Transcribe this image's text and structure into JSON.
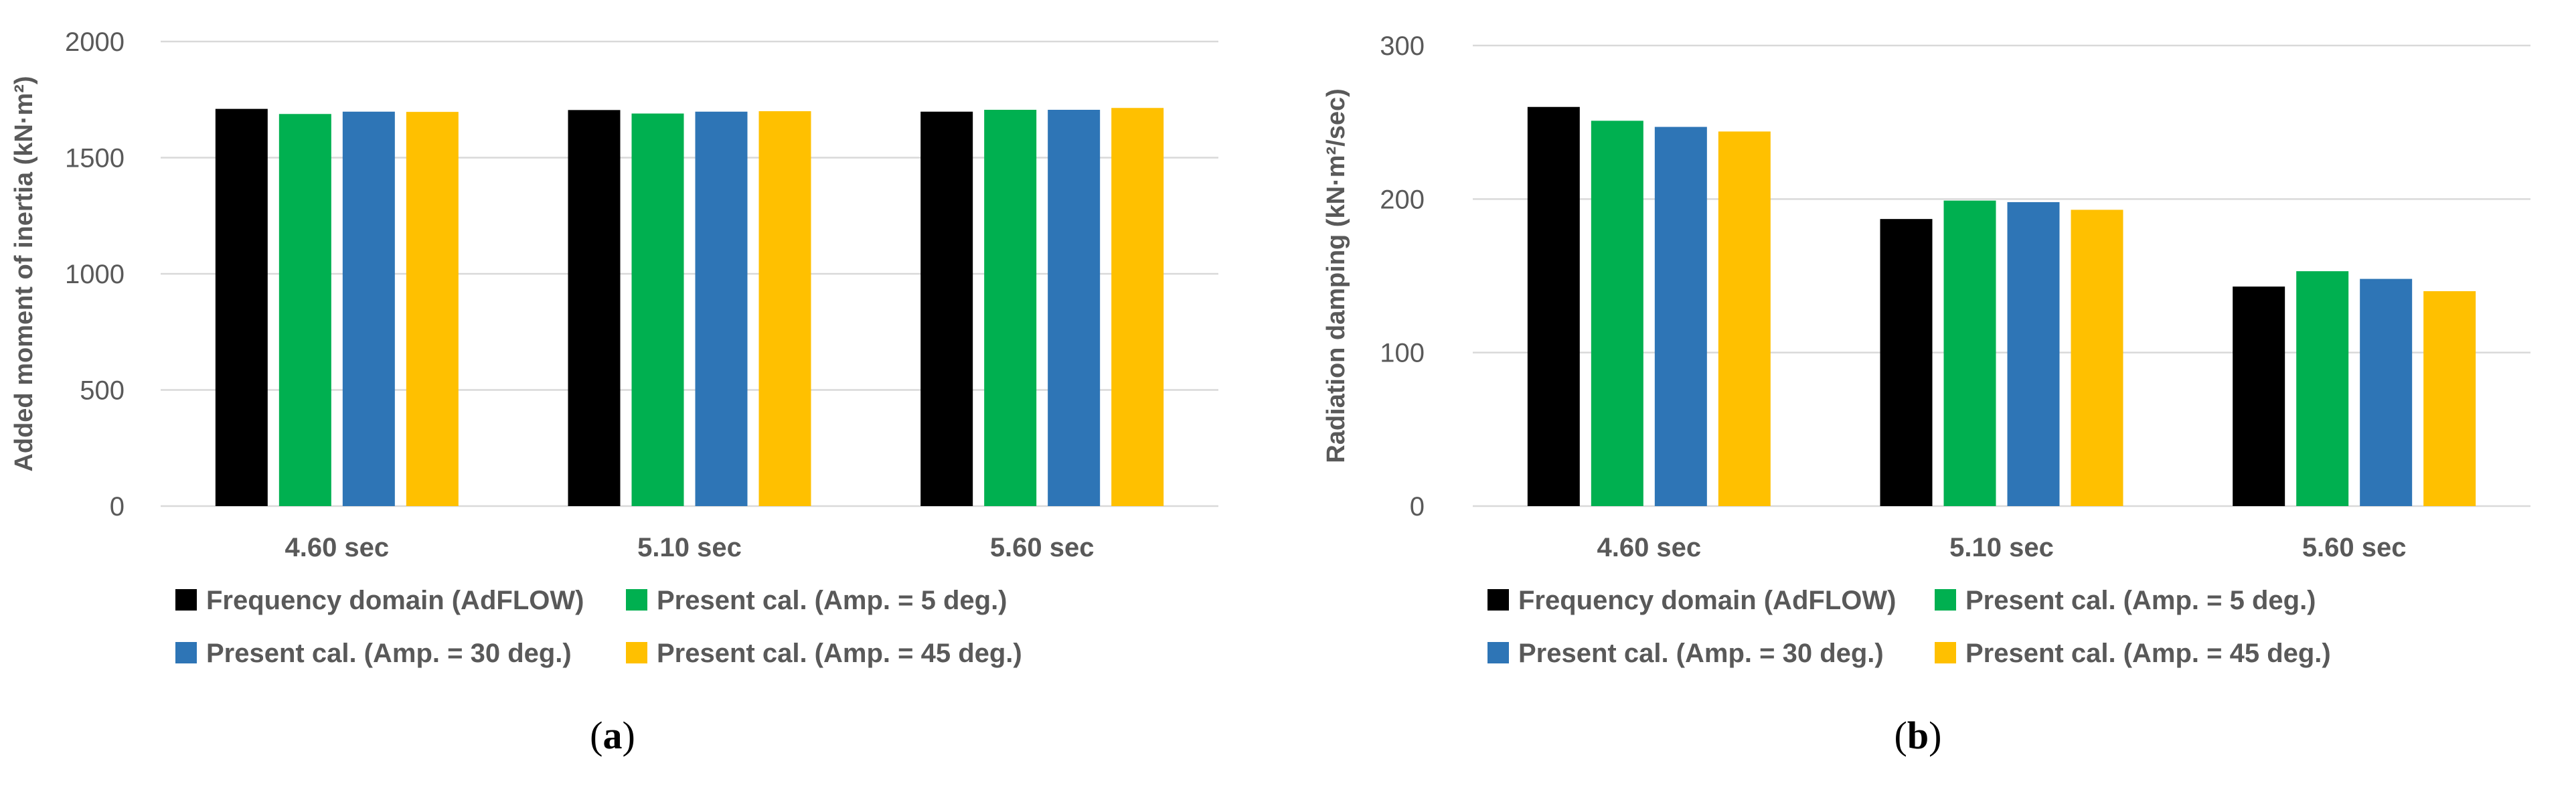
{
  "figure": {
    "panel_labels": [
      "a",
      "b"
    ],
    "colors": {
      "Frequency domain (AdFLOW)": "#000000",
      "Present cal. (Amp. = 5 deg.)": "#00b050",
      "Present cal. (Amp. = 30 deg.)": "#2e75b6",
      "Present cal. (Amp. = 45 deg.)": "#ffc000",
      "grid": "#d9d9d9",
      "text": "#595959"
    }
  },
  "chart_data": [
    {
      "type": "bar",
      "panel": "a",
      "title": "",
      "xlabel": "",
      "ylabel": "Added moment of inertia (kN·m²)",
      "ylim": [
        0,
        2000
      ],
      "yticks": [
        0,
        500,
        1000,
        1500,
        2000
      ],
      "grid": true,
      "legend_position": "bottom",
      "categories": [
        "4.60 sec",
        "5.10 sec",
        "5.60 sec"
      ],
      "series": [
        {
          "name": "Frequency domain (AdFLOW)",
          "values": [
            1710,
            1705,
            1698
          ]
        },
        {
          "name": "Present cal. (Amp. = 5 deg.)",
          "values": [
            1688,
            1690,
            1706
          ]
        },
        {
          "name": "Present cal. (Amp. = 30 deg.)",
          "values": [
            1698,
            1698,
            1706
          ]
        },
        {
          "name": "Present cal. (Amp. = 45 deg.)",
          "values": [
            1697,
            1700,
            1714
          ]
        }
      ]
    },
    {
      "type": "bar",
      "panel": "b",
      "title": "",
      "xlabel": "",
      "ylabel": "Radiation damping (kN·m²/sec)",
      "ylim": [
        0,
        300
      ],
      "yticks": [
        0,
        100,
        200,
        300
      ],
      "grid": true,
      "legend_position": "bottom",
      "categories": [
        "4.60 sec",
        "5.10 sec",
        "5.60 sec"
      ],
      "series": [
        {
          "name": "Frequency domain (AdFLOW)",
          "values": [
            260,
            187,
            143
          ]
        },
        {
          "name": "Present cal. (Amp. = 5 deg.)",
          "values": [
            251,
            199,
            153
          ]
        },
        {
          "name": "Present cal. (Amp. = 30 deg.)",
          "values": [
            247,
            198,
            148
          ]
        },
        {
          "name": "Present cal. (Amp. = 45 deg.)",
          "values": [
            244,
            193,
            140
          ]
        }
      ]
    }
  ]
}
